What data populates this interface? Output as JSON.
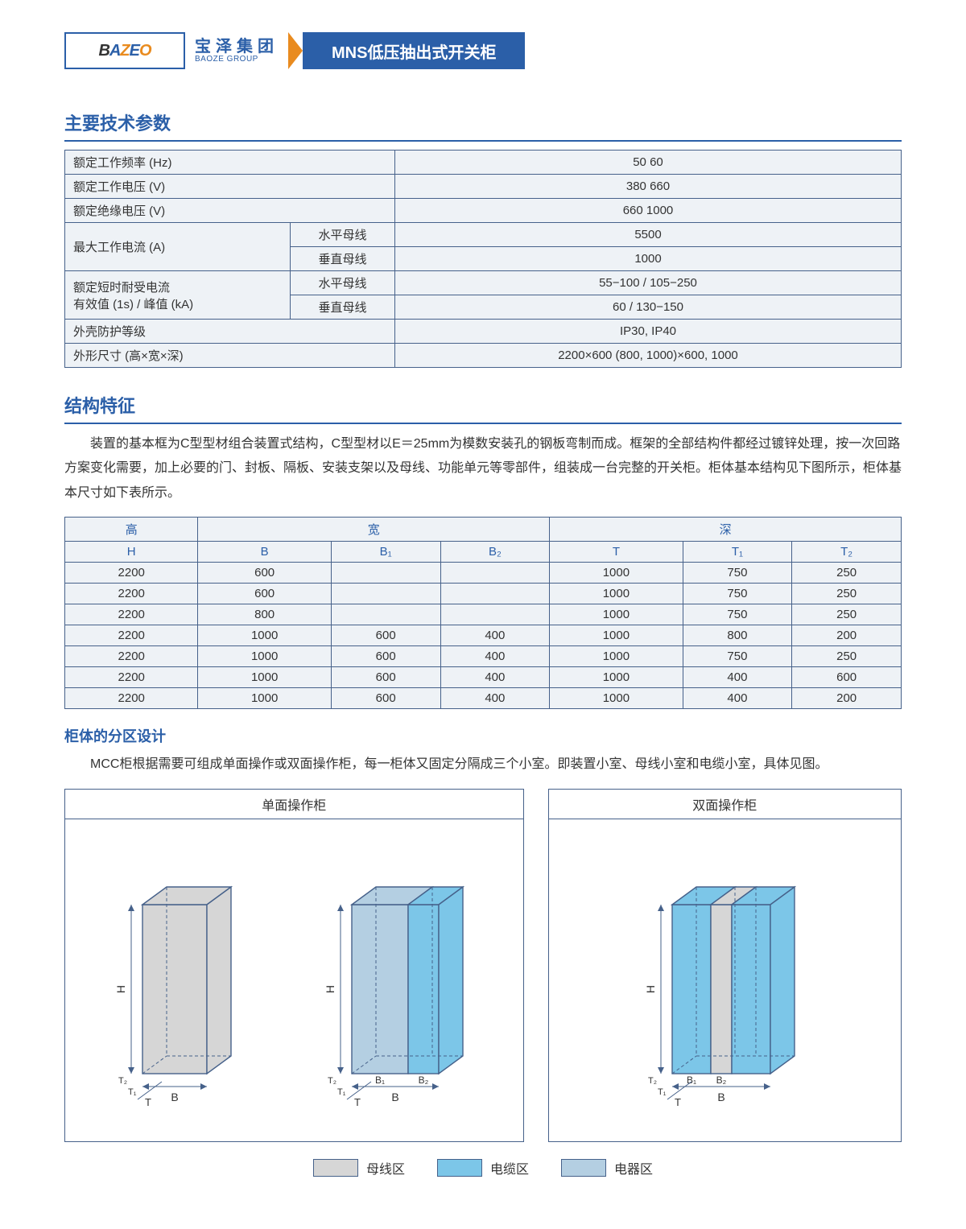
{
  "colors": {
    "brand_blue": "#2b5fa8",
    "orange": "#e98b1f",
    "cell_bg": "#eef2f6",
    "busbar_fill": "#d6d6d6",
    "cable_fill": "#7cc6e8",
    "elec_fill": "#b4cfe2",
    "line": "#46618a"
  },
  "header": {
    "logo_text_1": "B",
    "logo_text_2": "Z",
    "logo_text_3": "O",
    "logo_full": "BAZEO",
    "company_cn": "宝泽集团",
    "company_en": "BAOZE GROUP",
    "title": "MNS低压抽出式开关柜"
  },
  "sections": {
    "spec_title": "主要技术参数",
    "struct_title": "结构特征",
    "struct_body": "装置的基本框为C型型材组合装置式结构，C型型材以E＝25mm为模数安装孔的钢板弯制而成。框架的全部结构件都经过镀锌处理，按一次回路方案变化需要，加上必要的门、封板、隔板、安装支架以及母线、功能单元等零部件，组装成一台完整的开关柜。柜体基本结构见下图所示，柜体基本尺寸如下表所示。",
    "zone_title": "柜体的分区设计",
    "zone_body": "MCC柜根据需要可组成单面操作或双面操作柜，每一柜体又固定分隔成三个小室。即装置小室、母线小室和电缆小室，具体见图。"
  },
  "spec_table": {
    "rows": [
      {
        "label": "额定工作频率 (Hz)",
        "value": "50   60"
      },
      {
        "label": "额定工作电压 (V)",
        "value": "380   660"
      },
      {
        "label": "额定绝缘电压 (V)",
        "value": "660   1000"
      }
    ],
    "current": {
      "label": "最大工作电流 (A)",
      "sub1_label": "水平母线",
      "sub1_value": "5500",
      "sub2_label": "垂直母线",
      "sub2_value": "1000"
    },
    "short": {
      "label": "额定短时耐受电流\n有效值 (1s) / 峰值 (kA)",
      "sub1_label": "水平母线",
      "sub1_value": "55−100 / 105−250",
      "sub2_label": "垂直母线",
      "sub2_value": "60 / 130−150"
    },
    "ip": {
      "label": "外壳防护等级",
      "value": "IP30, IP40"
    },
    "size": {
      "label": "外形尺寸 (高×宽×深)",
      "value": "2200×600 (800, 1000)×600, 1000"
    }
  },
  "dim_table": {
    "group_labels": {
      "h": "高",
      "w": "宽",
      "d": "深"
    },
    "cols": [
      "H",
      "B",
      "B₁",
      "B₂",
      "T",
      "T₁",
      "T₂"
    ],
    "rows": [
      [
        "2200",
        "600",
        "",
        "",
        "1000",
        "750",
        "250"
      ],
      [
        "2200",
        "600",
        "",
        "",
        "1000",
        "750",
        "250"
      ],
      [
        "2200",
        "800",
        "",
        "",
        "1000",
        "750",
        "250"
      ],
      [
        "2200",
        "1000",
        "600",
        "400",
        "1000",
        "800",
        "200"
      ],
      [
        "2200",
        "1000",
        "600",
        "400",
        "1000",
        "750",
        "250"
      ],
      [
        "2200",
        "1000",
        "600",
        "400",
        "1000",
        "400",
        "600"
      ],
      [
        "2200",
        "1000",
        "600",
        "400",
        "1000",
        "400",
        "200"
      ]
    ]
  },
  "diagrams": {
    "single_title": "单面操作柜",
    "double_title": "双面操作柜",
    "labels": {
      "H": "H",
      "B": "B",
      "B1": "B₁",
      "B2": "B₂",
      "T": "T",
      "T1": "T₁",
      "T2": "T₂"
    }
  },
  "legend": {
    "busbar": "母线区",
    "cable": "电缆区",
    "elec": "电器区"
  }
}
